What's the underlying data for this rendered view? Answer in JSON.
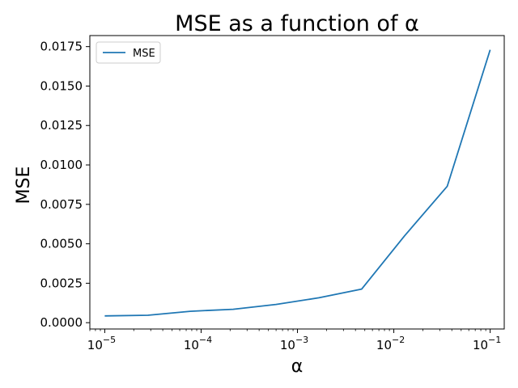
{
  "chart_data": {
    "type": "line",
    "title": "MSE as a function of α",
    "xlabel": "α",
    "ylabel": "MSE",
    "xscale": "log",
    "xlim": [
      7e-06,
      0.14
    ],
    "ylim": [
      -0.0004,
      0.0182
    ],
    "grid": false,
    "legend": "top-left",
    "x": [
      1e-05,
      2.8e-05,
      7.7e-05,
      0.000215,
      0.0006,
      0.00167,
      0.00464,
      0.0129,
      0.0359,
      0.1
    ],
    "series": [
      {
        "name": "MSE",
        "color": "#1f77b4",
        "values": [
          0.00043,
          0.00047,
          0.00072,
          0.00085,
          0.00116,
          0.00158,
          0.00213,
          0.0055,
          0.00865,
          0.0173
        ]
      }
    ],
    "xticks": [
      {
        "value": 1e-05,
        "base": "10",
        "exp": "−5"
      },
      {
        "value": 0.0001,
        "base": "10",
        "exp": "−4"
      },
      {
        "value": 0.001,
        "base": "10",
        "exp": "−3"
      },
      {
        "value": 0.01,
        "base": "10",
        "exp": "−2"
      },
      {
        "value": 0.1,
        "base": "10",
        "exp": "−1"
      }
    ],
    "yticks": [
      {
        "value": 0.0,
        "label": "0.0000"
      },
      {
        "value": 0.0025,
        "label": "0.0025"
      },
      {
        "value": 0.005,
        "label": "0.0050"
      },
      {
        "value": 0.0075,
        "label": "0.0075"
      },
      {
        "value": 0.01,
        "label": "0.0100"
      },
      {
        "value": 0.0125,
        "label": "0.0125"
      },
      {
        "value": 0.015,
        "label": "0.0150"
      },
      {
        "value": 0.0175,
        "label": "0.0175"
      }
    ]
  }
}
